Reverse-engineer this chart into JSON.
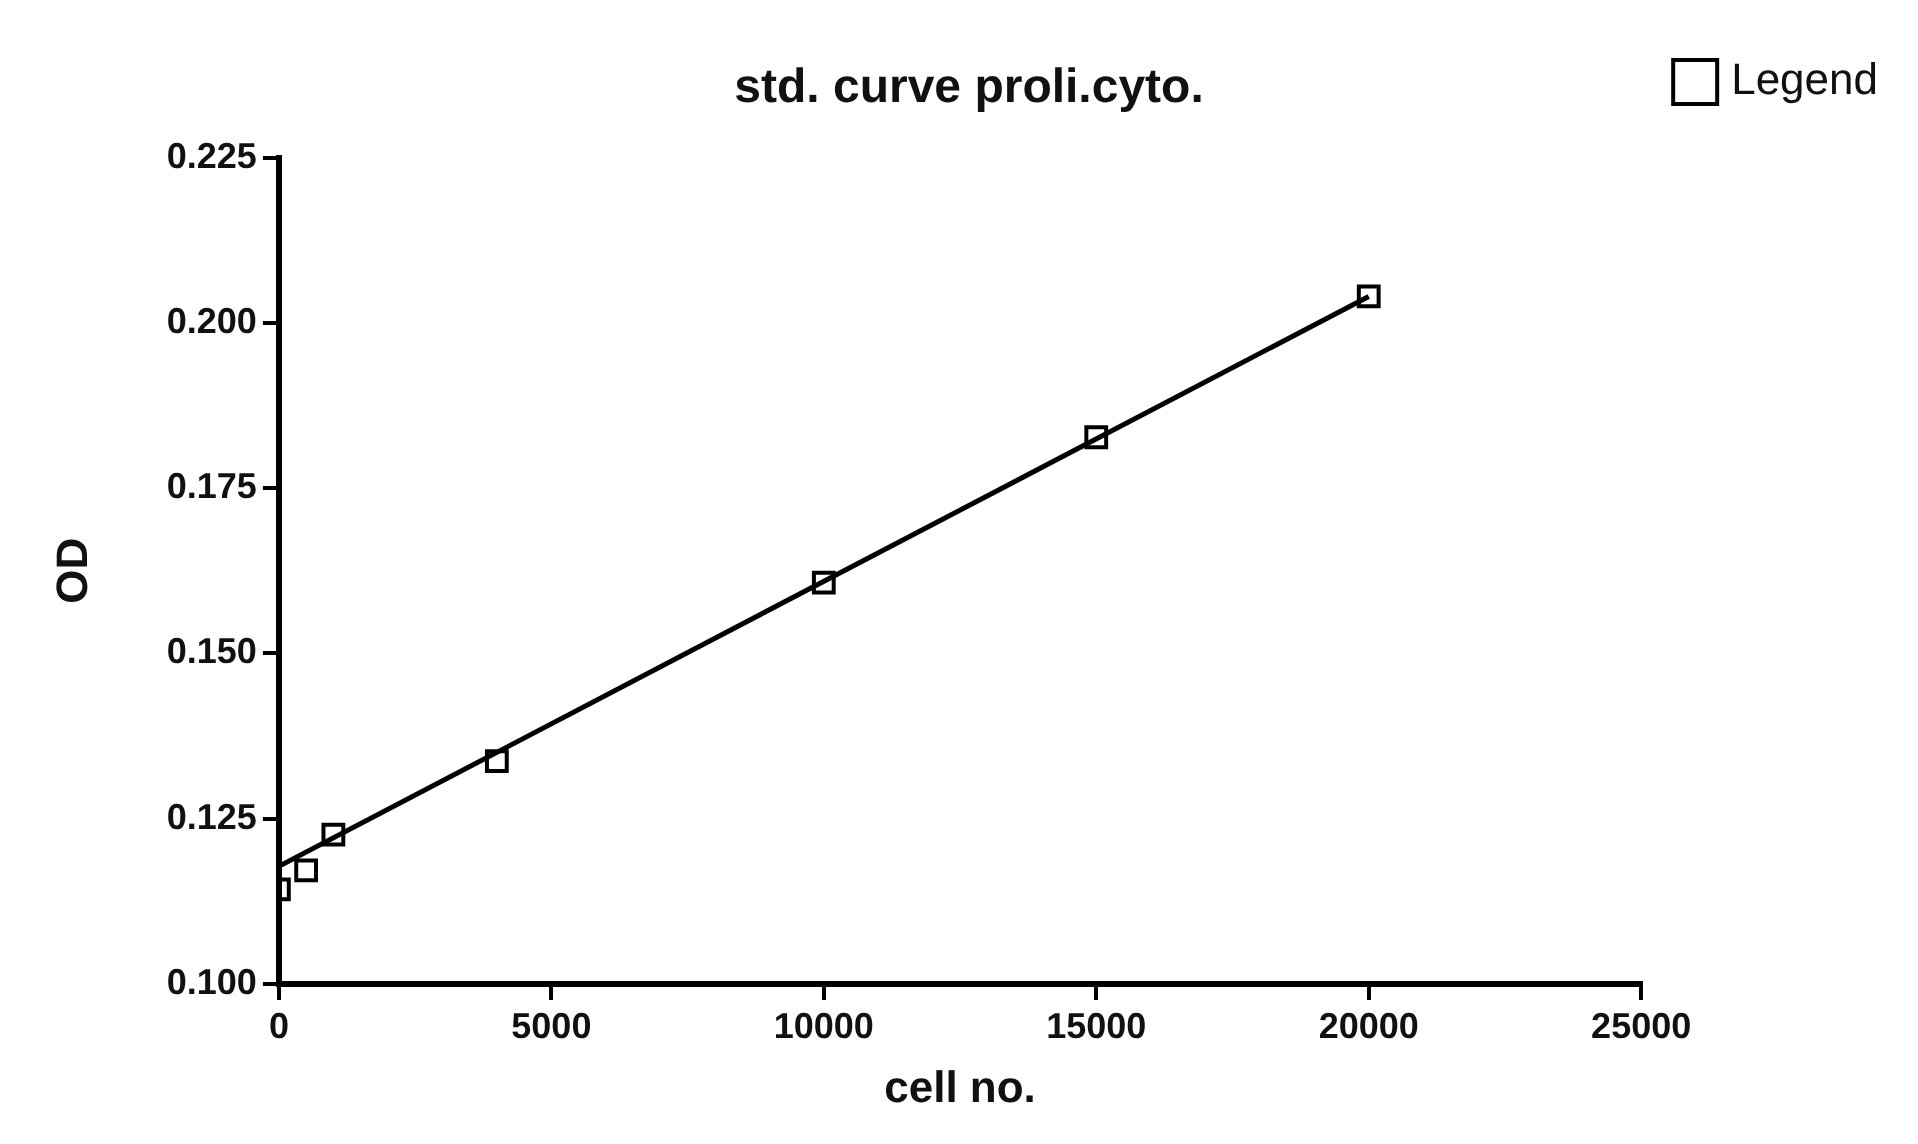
{
  "chart_data": {
    "type": "scatter",
    "title": "std. curve proli.cyto.",
    "xlabel": "cell no.",
    "ylabel": "OD",
    "x": [
      0,
      500,
      1000,
      4000,
      10000,
      15000,
      20000
    ],
    "series": [
      {
        "name": "Legend",
        "color": "#000000",
        "marker": "square",
        "values": [
          0.1143,
          0.1172,
          0.1226,
          0.1337,
          0.1607,
          0.1827,
          0.204
        ]
      },
      {
        "type": "line",
        "color": "#000000",
        "marker": "none",
        "x": [
          0,
          20000
        ],
        "values": [
          0.1178,
          0.204
        ]
      }
    ],
    "xlim": [
      0,
      25000
    ],
    "xticks": [
      0,
      5000,
      10000,
      15000,
      20000,
      25000
    ],
    "ylim": [
      0.1,
      0.225
    ],
    "yticks": [
      {
        "value": 0.1,
        "label": "0.100"
      },
      0.125,
      {
        "value": 0.15,
        "label": "0.150"
      },
      0.175,
      {
        "value": 0.2,
        "label": "0.200"
      },
      0.225
    ],
    "legend": "top right"
  }
}
